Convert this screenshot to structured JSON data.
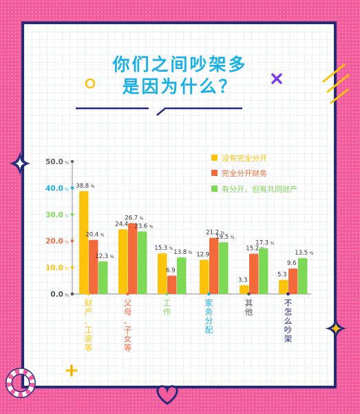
{
  "title_line1": "你们之间吵架多",
  "title_line2": "是因为什么？",
  "colors": {
    "background": "#f25a9b",
    "frame": "#242a7a",
    "title": "#19b0e6",
    "series": [
      "#fcc30a",
      "#f46b3b",
      "#7ed957"
    ]
  },
  "chart_data": {
    "type": "bar",
    "categories": [
      "财产、工资等",
      "父母、子女等",
      "工作",
      "家务分配",
      "其他",
      "不怎么吵架"
    ],
    "series": [
      {
        "name": "没有完全分开",
        "values": [
          38.8,
          24.4,
          15.3,
          12.9,
          3.3,
          5.3
        ]
      },
      {
        "name": "完全分开财务",
        "values": [
          20.4,
          26.7,
          6.9,
          21.2,
          15.2,
          9.6
        ]
      },
      {
        "name": "有分开，但有共同财产",
        "values": [
          12.3,
          23.6,
          13.8,
          19.5,
          17.3,
          13.5
        ]
      }
    ],
    "ylim": [
      0,
      50
    ],
    "yticks": [
      "50.0",
      "40.0",
      "30.0",
      "20.0",
      "10.0",
      "0.0"
    ],
    "y_unit": "%",
    "legend_position": "top-right",
    "grid": false,
    "value_label_suffix": "%"
  }
}
